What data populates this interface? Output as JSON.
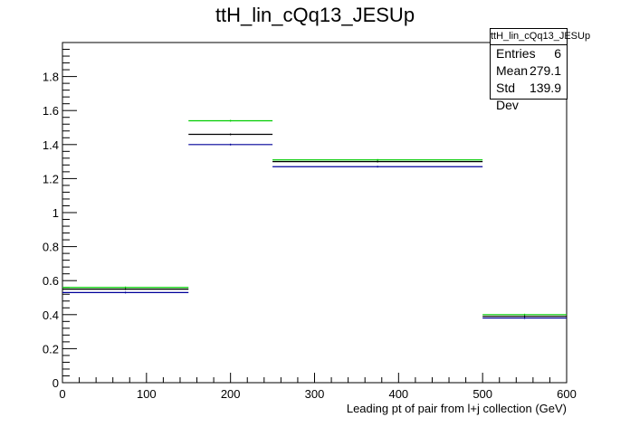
{
  "chart_data": {
    "type": "histogram",
    "title": "ttH_lin_cQq13_JESUp",
    "xlabel": "Leading pt of pair from l+j collection (GeV)",
    "ylabel": "",
    "xlim": [
      0,
      600
    ],
    "ylim": [
      0,
      2.0
    ],
    "x_ticks": [
      0,
      100,
      200,
      300,
      400,
      500,
      600
    ],
    "y_ticks": [
      0,
      0.2,
      0.4,
      0.6,
      0.8,
      1,
      1.2,
      1.4,
      1.6,
      1.8
    ],
    "bin_edges": [
      0,
      150,
      250,
      500,
      600
    ],
    "series": [
      {
        "color": "#00cc00",
        "values": [
          0.56,
          1.54,
          1.31,
          0.4
        ]
      },
      {
        "color": "#000000",
        "values": [
          0.55,
          1.46,
          1.3,
          0.39
        ]
      },
      {
        "color": "#000099",
        "values": [
          0.53,
          1.4,
          1.27,
          0.38
        ]
      }
    ],
    "grid": false,
    "stats_box": {
      "name": "ttH_lin_cQq13_JESUp",
      "rows": [
        {
          "label": "Entries",
          "value": "6"
        },
        {
          "label": "Mean",
          "value": "279.1"
        },
        {
          "label": "Std Dev",
          "value": "139.9"
        }
      ]
    }
  }
}
